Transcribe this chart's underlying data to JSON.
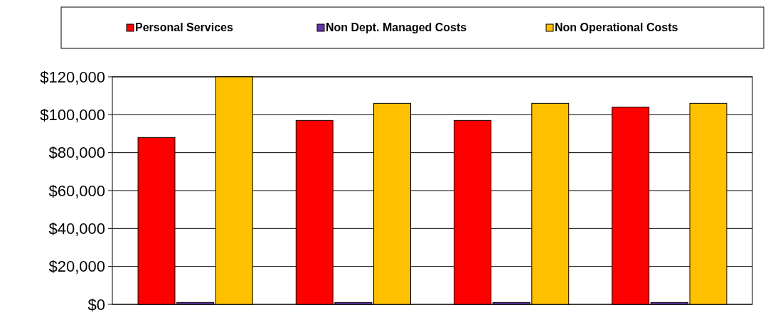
{
  "chart_data": {
    "type": "bar",
    "categories": [
      null,
      null,
      null,
      null
    ],
    "series": [
      {
        "name": "Personal Services",
        "color": "#ff0000",
        "values": [
          88000,
          97000,
          97000,
          104000
        ]
      },
      {
        "name": "Non Dept. Managed Costs",
        "color": "#6633aa",
        "values": [
          1000,
          1000,
          1000,
          1000
        ]
      },
      {
        "name": "Non Operational Costs",
        "color": "#ffc000",
        "values": [
          120000,
          106000,
          106000,
          106000
        ]
      }
    ],
    "ylim": [
      0,
      120000
    ],
    "yticks": [
      {
        "value": 0,
        "label": "$0"
      },
      {
        "value": 20000,
        "label": "$20,000"
      },
      {
        "value": 40000,
        "label": "$40,000"
      },
      {
        "value": 60000,
        "label": "$60,000"
      },
      {
        "value": 80000,
        "label": "$80,000"
      },
      {
        "value": 100000,
        "label": "$100,000"
      },
      {
        "value": 120000,
        "label": "$120,000"
      }
    ],
    "grid": "y",
    "legend": "top"
  }
}
